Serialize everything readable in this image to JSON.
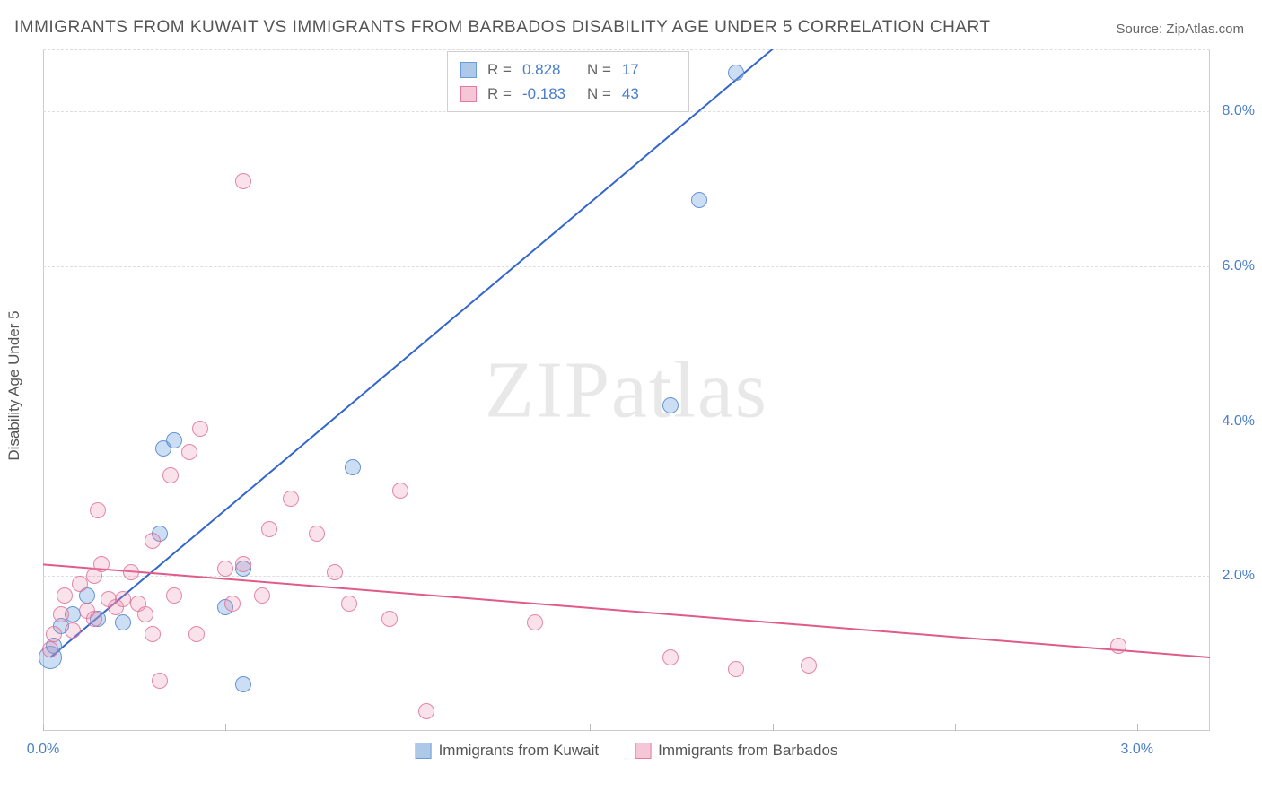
{
  "title": "IMMIGRANTS FROM KUWAIT VS IMMIGRANTS FROM BARBADOS DISABILITY AGE UNDER 5 CORRELATION CHART",
  "source_label": "Source: ZipAtlas.com",
  "y_axis_label": "Disability Age Under 5",
  "watermark": "ZIPatlas",
  "chart": {
    "type": "scatter",
    "background_color": "#ffffff",
    "grid_color": "#dddddd",
    "x_range": [
      0.0,
      3.2
    ],
    "y_range": [
      0.0,
      8.8
    ],
    "y_ticks": [
      2.0,
      4.0,
      6.0,
      8.0
    ],
    "y_tick_labels": [
      "2.0%",
      "4.0%",
      "6.0%",
      "8.0%"
    ],
    "x_ticks": [
      0.0,
      0.5,
      1.0,
      1.5,
      2.0,
      2.5,
      3.0
    ],
    "x_tick_labels_visible": {
      "0.0": "0.0%",
      "3.0": "3.0%"
    },
    "tick_label_color": "#4a7ec8",
    "marker_radius": 9,
    "marker_radius_big": 13
  },
  "series": [
    {
      "name": "Immigrants from Kuwait",
      "color_fill": "#aec9e8",
      "color_stroke": "#6b9bd8",
      "stats": {
        "R": "0.828",
        "N": "17"
      },
      "trend": {
        "x1": 0.02,
        "y1": 0.95,
        "x2": 2.05,
        "y2": 9.0,
        "color": "#3366cc"
      },
      "points": [
        {
          "x": 0.02,
          "y": 0.95,
          "r": 13
        },
        {
          "x": 0.03,
          "y": 1.1
        },
        {
          "x": 0.05,
          "y": 1.35
        },
        {
          "x": 0.08,
          "y": 1.5
        },
        {
          "x": 0.12,
          "y": 1.75
        },
        {
          "x": 0.15,
          "y": 1.45
        },
        {
          "x": 0.22,
          "y": 1.4
        },
        {
          "x": 0.32,
          "y": 2.55
        },
        {
          "x": 0.33,
          "y": 3.65
        },
        {
          "x": 0.36,
          "y": 3.75
        },
        {
          "x": 0.5,
          "y": 1.6
        },
        {
          "x": 0.55,
          "y": 2.1
        },
        {
          "x": 0.55,
          "y": 0.6
        },
        {
          "x": 0.85,
          "y": 3.4
        },
        {
          "x": 1.72,
          "y": 4.2
        },
        {
          "x": 1.8,
          "y": 6.85
        },
        {
          "x": 1.9,
          "y": 8.5
        }
      ]
    },
    {
      "name": "Immigrants from Barbados",
      "color_fill": "#f5c6d6",
      "color_stroke": "#e67a9e",
      "stats": {
        "R": "-0.183",
        "N": "43"
      },
      "trend": {
        "x1": 0.0,
        "y1": 2.15,
        "x2": 3.2,
        "y2": 0.95,
        "color": "#e05a8a"
      },
      "points": [
        {
          "x": 0.02,
          "y": 1.05
        },
        {
          "x": 0.03,
          "y": 1.25
        },
        {
          "x": 0.05,
          "y": 1.5
        },
        {
          "x": 0.06,
          "y": 1.75
        },
        {
          "x": 0.08,
          "y": 1.3
        },
        {
          "x": 0.1,
          "y": 1.9
        },
        {
          "x": 0.12,
          "y": 1.55
        },
        {
          "x": 0.14,
          "y": 2.0
        },
        {
          "x": 0.14,
          "y": 1.45
        },
        {
          "x": 0.15,
          "y": 2.85
        },
        {
          "x": 0.16,
          "y": 2.15
        },
        {
          "x": 0.18,
          "y": 1.7
        },
        {
          "x": 0.2,
          "y": 1.6
        },
        {
          "x": 0.22,
          "y": 1.7
        },
        {
          "x": 0.24,
          "y": 2.05
        },
        {
          "x": 0.26,
          "y": 1.65
        },
        {
          "x": 0.28,
          "y": 1.5
        },
        {
          "x": 0.3,
          "y": 1.25
        },
        {
          "x": 0.3,
          "y": 2.45
        },
        {
          "x": 0.32,
          "y": 0.65
        },
        {
          "x": 0.35,
          "y": 3.3
        },
        {
          "x": 0.36,
          "y": 1.75
        },
        {
          "x": 0.4,
          "y": 3.6
        },
        {
          "x": 0.42,
          "y": 1.25
        },
        {
          "x": 0.43,
          "y": 3.9
        },
        {
          "x": 0.5,
          "y": 2.1
        },
        {
          "x": 0.52,
          "y": 1.65
        },
        {
          "x": 0.55,
          "y": 2.15
        },
        {
          "x": 0.55,
          "y": 7.1
        },
        {
          "x": 0.6,
          "y": 1.75
        },
        {
          "x": 0.62,
          "y": 2.6
        },
        {
          "x": 0.68,
          "y": 3.0
        },
        {
          "x": 0.75,
          "y": 2.55
        },
        {
          "x": 0.8,
          "y": 2.05
        },
        {
          "x": 0.84,
          "y": 1.65
        },
        {
          "x": 0.95,
          "y": 1.45
        },
        {
          "x": 0.98,
          "y": 3.1
        },
        {
          "x": 1.05,
          "y": 0.25
        },
        {
          "x": 1.35,
          "y": 1.4
        },
        {
          "x": 1.72,
          "y": 0.95
        },
        {
          "x": 1.9,
          "y": 0.8
        },
        {
          "x": 2.1,
          "y": 0.85
        },
        {
          "x": 2.95,
          "y": 1.1
        }
      ]
    }
  ],
  "legend": {
    "items": [
      {
        "label": "Immigrants from Kuwait",
        "fill": "#aec9e8",
        "stroke": "#6b9bd8"
      },
      {
        "label": "Immigrants from Barbados",
        "fill": "#f5c6d6",
        "stroke": "#e67a9e"
      }
    ]
  }
}
